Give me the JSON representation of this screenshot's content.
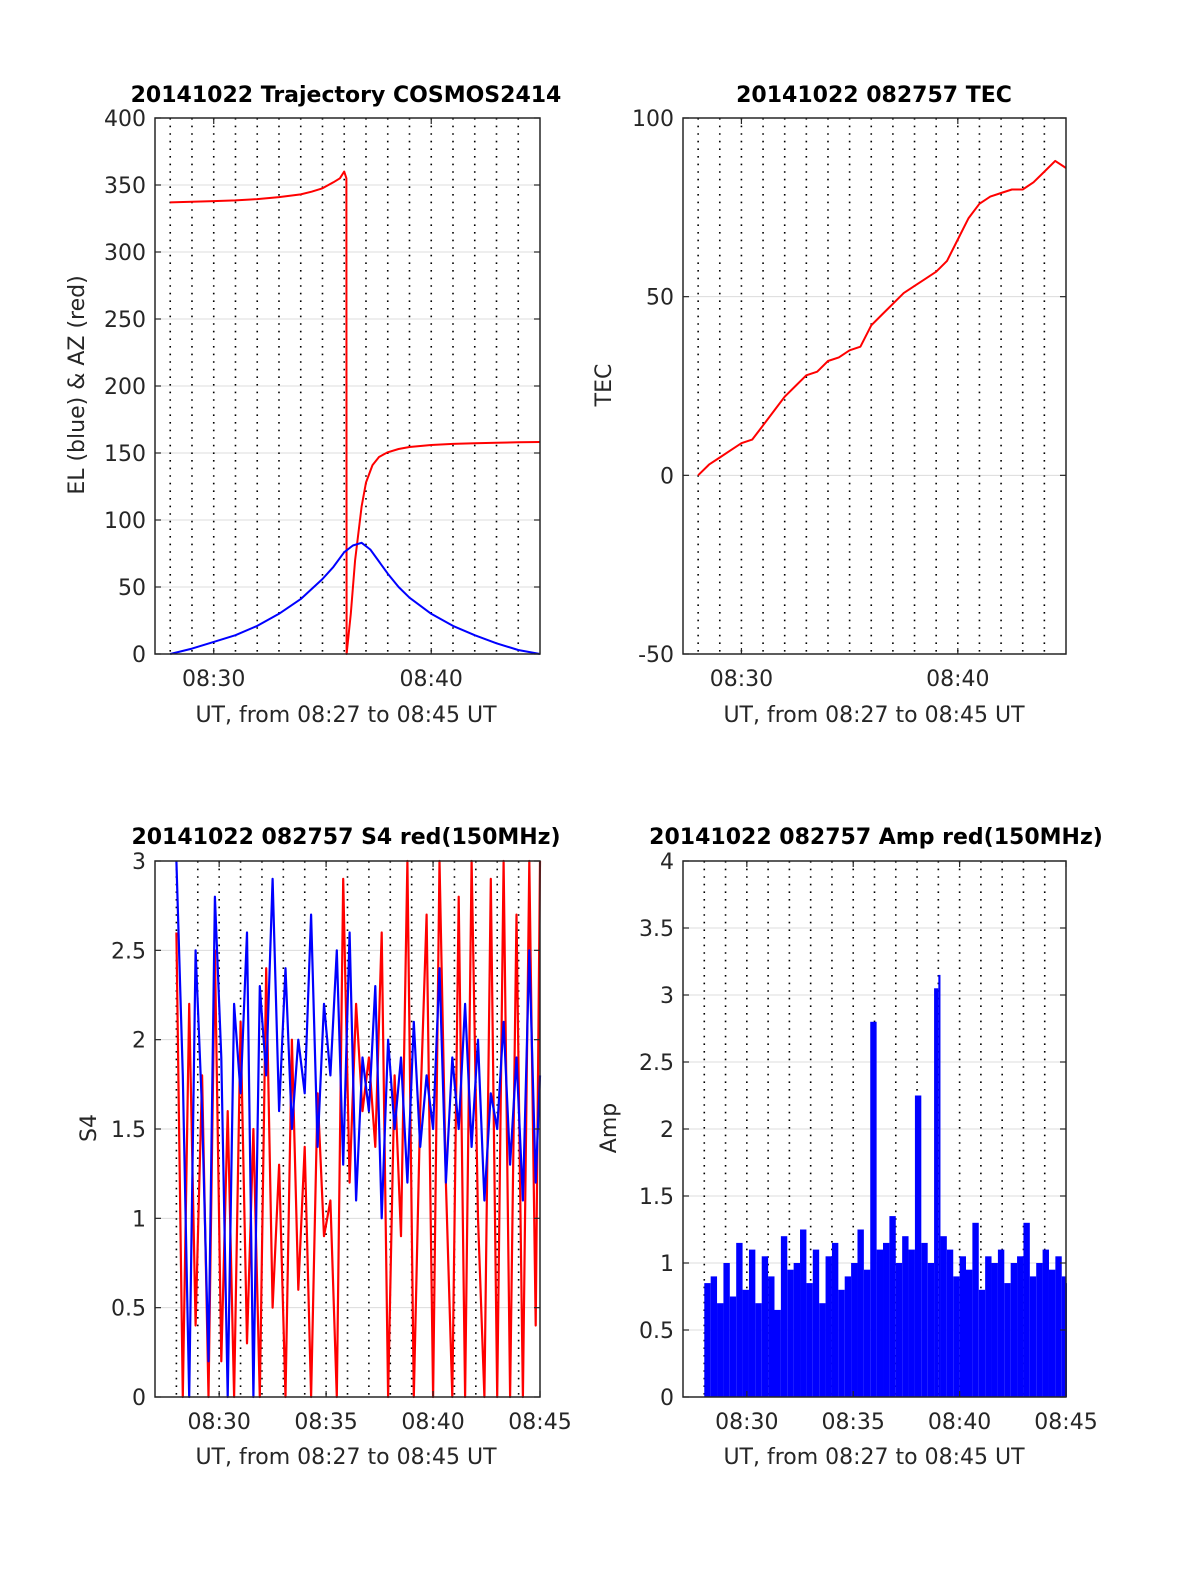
{
  "colors": {
    "red": "#ff0000",
    "blue": "#0000ff",
    "axis": "#262626",
    "grid": "#dcdcdc",
    "dotted": "#000000"
  },
  "chart_data": [
    {
      "type": "line",
      "title": "20141022 Trajectory COSMOS2414",
      "xlabel": "UT, from 08:27 to 08:45 UT",
      "ylabel": "EL (blue) & AZ (red)",
      "xlim": [
        27.3,
        45.0
      ],
      "ylim": [
        0,
        400
      ],
      "xticks": [
        30,
        40
      ],
      "xticklabels": [
        "08:30",
        "08:40"
      ],
      "yticks": [
        0,
        50,
        100,
        150,
        200,
        250,
        300,
        350,
        400
      ],
      "yticklabels": [
        "0",
        "50",
        "100",
        "150",
        "200",
        "250",
        "300",
        "350",
        "400"
      ],
      "grid": true,
      "dotted_minutes": [
        28,
        29,
        30,
        31,
        32,
        33,
        34,
        35,
        36,
        37,
        38,
        39,
        40,
        41,
        42,
        43,
        44
      ],
      "series": [
        {
          "color": "red",
          "x": [
            28.0,
            29,
            30,
            31,
            32,
            33,
            34,
            34.5,
            35,
            35.5,
            35.8,
            36.0,
            36.1,
            36.11,
            36.3,
            36.5,
            36.8,
            37.0,
            37.3,
            37.6,
            38,
            38.5,
            39,
            40,
            41,
            42,
            43,
            44,
            45
          ],
          "y": [
            337,
            337.5,
            338,
            338.5,
            339.5,
            341,
            343,
            345,
            347.5,
            352,
            355,
            360,
            355,
            0,
            30,
            70,
            110,
            128,
            141,
            147,
            150.5,
            153,
            154.5,
            156,
            156.8,
            157.3,
            157.7,
            158,
            158.2
          ]
        },
        {
          "color": "blue",
          "x": [
            28.0,
            29,
            30,
            31,
            32,
            33,
            34,
            35,
            35.5,
            36,
            36.4,
            36.8,
            37.2,
            37.6,
            38,
            38.5,
            39,
            40,
            41,
            42,
            43,
            44,
            45
          ],
          "y": [
            0,
            4,
            9,
            14,
            21,
            30,
            41,
            56,
            65,
            76,
            81,
            83,
            78,
            69,
            60,
            50,
            42,
            30,
            21,
            14,
            8,
            3,
            0
          ]
        }
      ]
    },
    {
      "type": "line",
      "title": "20141022 082757 TEC",
      "xlabel": "UT, from 08:27 to 08:45 UT",
      "ylabel": "TEC",
      "xlim": [
        27.3,
        45.0
      ],
      "ylim": [
        -50,
        100
      ],
      "xticks": [
        30,
        40
      ],
      "xticklabels": [
        "08:30",
        "08:40"
      ],
      "yticks": [
        -50,
        0,
        50,
        100
      ],
      "yticklabels": [
        "-50",
        "0",
        "50",
        "100"
      ],
      "grid": true,
      "dotted_minutes": [
        28,
        29,
        30,
        31,
        32,
        33,
        34,
        35,
        36,
        37,
        38,
        39,
        40,
        41,
        42,
        43,
        44
      ],
      "series": [
        {
          "color": "red",
          "x": [
            28.0,
            28.5,
            29,
            29.5,
            30,
            30.5,
            31,
            31.5,
            32,
            32.5,
            33,
            33.5,
            34,
            34.5,
            35,
            35.5,
            36,
            36.5,
            37,
            37.5,
            38,
            38.5,
            39,
            39.5,
            40,
            40.5,
            41,
            41.5,
            42,
            42.5,
            43,
            43.5,
            44,
            44.5,
            45
          ],
          "y": [
            0,
            3,
            5,
            7,
            9,
            10,
            14,
            18,
            22,
            25,
            28,
            29,
            32,
            33,
            35,
            36,
            42,
            45,
            48,
            51,
            53,
            55,
            57,
            60,
            66,
            72,
            76,
            78,
            79,
            80,
            80,
            82,
            85,
            88,
            86
          ]
        }
      ]
    },
    {
      "type": "line",
      "title": "20141022 082757 S4 red(150MHz)",
      "xlabel": "UT, from 08:27 to 08:45 UT",
      "ylabel": "S4",
      "xlim": [
        27.0,
        45.0
      ],
      "ylim": [
        0,
        3
      ],
      "xticks": [
        30,
        35,
        40,
        45
      ],
      "xticklabels": [
        "08:30",
        "08:35",
        "08:40",
        "08:45"
      ],
      "yticks": [
        0,
        0.5,
        1,
        1.5,
        2,
        2.5,
        3
      ],
      "yticklabels": [
        "0",
        "0.5",
        "1",
        "1.5",
        "2",
        "2.5",
        "3"
      ],
      "grid": true,
      "dotted_minutes": [
        28,
        29,
        30,
        31,
        32,
        33,
        34,
        35,
        36,
        37,
        38,
        39,
        40,
        41,
        42,
        43,
        44
      ],
      "series": [
        {
          "color": "red",
          "x": [
            28.0,
            28.3,
            28.6,
            28.9,
            29.2,
            29.5,
            29.8,
            30.1,
            30.4,
            30.7,
            31.0,
            31.3,
            31.6,
            31.9,
            32.2,
            32.5,
            32.8,
            33.1,
            33.4,
            33.7,
            34.0,
            34.3,
            34.6,
            34.9,
            35.2,
            35.5,
            35.8,
            36.1,
            36.4,
            36.7,
            37.0,
            37.3,
            37.6,
            37.9,
            38.2,
            38.5,
            38.8,
            39.1,
            39.4,
            39.7,
            40.0,
            40.3,
            40.6,
            40.9,
            41.2,
            41.5,
            41.8,
            42.1,
            42.4,
            42.7,
            43.0,
            43.3,
            43.6,
            43.9,
            44.2,
            44.5,
            44.8,
            45.0
          ],
          "y": [
            2.6,
            0.0,
            2.2,
            0.4,
            1.8,
            0.0,
            2.5,
            0.2,
            1.6,
            0.0,
            2.1,
            0.3,
            1.5,
            0.0,
            2.4,
            0.5,
            1.3,
            0.0,
            2.0,
            0.6,
            1.4,
            0.0,
            1.7,
            0.9,
            1.1,
            0.0,
            2.9,
            1.2,
            2.2,
            1.6,
            1.9,
            1.4,
            2.6,
            0.0,
            1.8,
            0.9,
            3.0,
            0.0,
            1.6,
            2.7,
            0.0,
            3.0,
            1.2,
            0.0,
            2.8,
            0.0,
            3.0,
            1.0,
            0.0,
            2.9,
            0.0,
            3.0,
            0.0,
            2.7,
            0.0,
            3.0,
            0.4,
            3.0
          ]
        },
        {
          "color": "blue",
          "x": [
            28.0,
            28.3,
            28.6,
            28.9,
            29.2,
            29.5,
            29.8,
            30.1,
            30.4,
            30.7,
            31.0,
            31.3,
            31.6,
            31.9,
            32.2,
            32.5,
            32.8,
            33.1,
            33.4,
            33.7,
            34.0,
            34.3,
            34.6,
            34.9,
            35.2,
            35.5,
            35.8,
            36.1,
            36.4,
            36.7,
            37.0,
            37.3,
            37.6,
            37.9,
            38.2,
            38.5,
            38.8,
            39.1,
            39.4,
            39.7,
            40.0,
            40.3,
            40.6,
            40.9,
            41.2,
            41.5,
            41.8,
            42.1,
            42.4,
            42.7,
            43.0,
            43.3,
            43.6,
            43.9,
            44.2,
            44.5,
            44.8,
            45.0
          ],
          "y": [
            3.0,
            1.8,
            0.0,
            2.5,
            1.6,
            0.2,
            2.8,
            1.9,
            0.0,
            2.2,
            1.7,
            2.6,
            0.0,
            2.3,
            1.8,
            2.9,
            1.6,
            2.4,
            1.5,
            2.0,
            1.7,
            2.7,
            1.4,
            2.2,
            1.8,
            2.5,
            1.3,
            2.6,
            1.1,
            1.9,
            1.6,
            2.3,
            1.0,
            2.0,
            1.5,
            1.9,
            1.2,
            2.1,
            1.4,
            1.8,
            1.5,
            2.4,
            1.2,
            1.9,
            1.5,
            2.2,
            1.4,
            2.0,
            1.1,
            1.7,
            1.5,
            2.1,
            1.3,
            1.9,
            1.1,
            2.5,
            1.2,
            1.8
          ]
        }
      ]
    },
    {
      "type": "bar",
      "title": "20141022 082757 Amp red(150MHz)",
      "xlabel": "UT, from 08:27 to 08:45 UT",
      "ylabel": "Amp",
      "xlim": [
        27.0,
        45.0
      ],
      "ylim": [
        0,
        4
      ],
      "xticks": [
        30,
        35,
        40,
        45
      ],
      "xticklabels": [
        "08:30",
        "08:35",
        "08:40",
        "08:45"
      ],
      "yticks": [
        0,
        0.5,
        1,
        1.5,
        2,
        2.5,
        3,
        3.5,
        4
      ],
      "yticklabels": [
        "0",
        "0.5",
        "1",
        "1.5",
        "2",
        "2.5",
        "3",
        "3.5",
        "4"
      ],
      "grid": true,
      "dotted_minutes": [
        28,
        29,
        30,
        31,
        32,
        33,
        34,
        35,
        36,
        37,
        38,
        39,
        40,
        41,
        42,
        43,
        44
      ],
      "series": [
        {
          "color": "blue",
          "x": [
            28.0,
            28.3,
            28.6,
            28.9,
            29.2,
            29.5,
            29.8,
            30.1,
            30.4,
            30.7,
            31.0,
            31.3,
            31.6,
            31.9,
            32.2,
            32.5,
            32.8,
            33.1,
            33.4,
            33.7,
            34.0,
            34.3,
            34.6,
            34.9,
            35.2,
            35.5,
            35.8,
            36.1,
            36.4,
            36.7,
            37.0,
            37.3,
            37.6,
            37.9,
            38.2,
            38.5,
            38.8,
            39.0,
            39.1,
            39.4,
            39.7,
            40.0,
            40.3,
            40.6,
            40.9,
            41.2,
            41.5,
            41.8,
            42.1,
            42.4,
            42.7,
            43.0,
            43.3,
            43.6,
            43.9,
            44.2,
            44.5,
            44.8,
            45.0
          ],
          "y": [
            0.85,
            0.9,
            0.7,
            1.0,
            0.75,
            1.15,
            0.8,
            1.1,
            0.7,
            1.05,
            0.9,
            0.65,
            1.2,
            0.95,
            1.0,
            1.25,
            0.85,
            1.1,
            0.7,
            1.05,
            1.15,
            0.8,
            0.9,
            1.0,
            1.25,
            0.95,
            2.8,
            1.1,
            1.15,
            1.35,
            1.0,
            1.2,
            1.1,
            2.25,
            1.15,
            1.0,
            3.05,
            3.15,
            1.2,
            1.1,
            0.9,
            1.05,
            0.95,
            1.3,
            0.8,
            1.05,
            1.0,
            1.1,
            0.85,
            1.0,
            1.05,
            1.3,
            0.9,
            1.0,
            1.1,
            0.95,
            1.05,
            0.9,
            0.85
          ]
        }
      ]
    }
  ]
}
